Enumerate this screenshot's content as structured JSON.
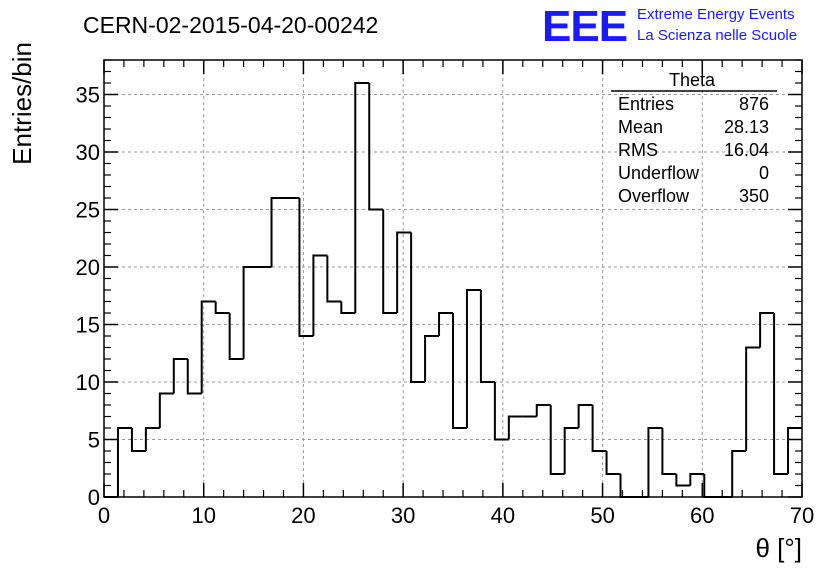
{
  "chart_data": {
    "type": "histogram",
    "title": "CERN-02-2015-04-20-00242",
    "xlabel": "θ [°]",
    "ylabel": "Entries/bin",
    "xlim": [
      0,
      70
    ],
    "ylim": [
      0,
      38
    ],
    "grid": true,
    "x_ticks": [
      0,
      10,
      20,
      30,
      40,
      50,
      60,
      70
    ],
    "y_ticks": [
      0,
      5,
      10,
      15,
      20,
      25,
      30,
      35
    ],
    "bin_width": 1.4,
    "x_start": 0,
    "values": [
      0,
      6,
      4,
      6,
      9,
      12,
      9,
      17,
      16,
      12,
      20,
      20,
      26,
      26,
      14,
      21,
      17,
      16,
      36,
      25,
      16,
      23,
      10,
      14,
      16,
      6,
      18,
      10,
      5,
      7,
      7,
      8,
      2,
      6,
      8,
      4,
      2,
      0,
      0,
      6,
      2,
      1,
      2,
      0,
      0,
      4,
      13,
      16,
      2,
      6
    ],
    "stats_box": {
      "title": "Theta",
      "rows": [
        {
          "label": "Entries",
          "value": "876"
        },
        {
          "label": "Mean",
          "value": "28.13"
        },
        {
          "label": "RMS",
          "value": "16.04"
        },
        {
          "label": "Underflow",
          "value": "0"
        },
        {
          "label": "Overflow",
          "value": "350"
        }
      ]
    }
  },
  "logo": {
    "letters": "EEE",
    "line1": "Extreme Energy Events",
    "line2": "La Scienza nelle Scuole",
    "color": "#1a1aff"
  },
  "colors": {
    "line": "#000000",
    "grid": "#9a9a9a",
    "background": "#ffffff"
  }
}
